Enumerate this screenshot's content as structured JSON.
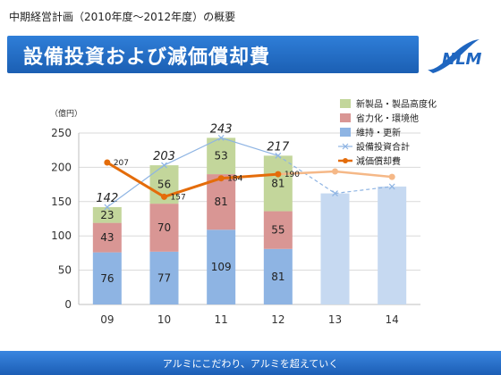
{
  "header": {
    "subtitle": "中期経営計画（2010年度～2012年度）の概要",
    "title": "設備投資および減価償却費",
    "logo_text": "NLM"
  },
  "footer": {
    "tagline": "アルミにこだわり、アルミを超えていく"
  },
  "colors": {
    "brand_blue": "#1f66c0",
    "maintenance": "#8eb4e3",
    "efficiency": "#d99694",
    "new_products": "#c3d69b",
    "capex_line": "#8eb4e3",
    "depreciation": "#e46c0a",
    "forecast_bar": "#c6d9f1",
    "forecast_line": "#f5b887"
  },
  "chart_data": {
    "type": "bar",
    "unit_label": "（億円）",
    "categories": [
      "09",
      "10",
      "11",
      "12",
      "13",
      "14"
    ],
    "ylim": [
      0,
      250
    ],
    "yticks": [
      0,
      50,
      100,
      150,
      200,
      250
    ],
    "grid": true,
    "legend_position": "top-right",
    "stacked_series": [
      {
        "name": "維持・更新",
        "values": [
          76,
          77,
          109,
          81,
          null,
          null
        ]
      },
      {
        "name": "省力化・環境他",
        "values": [
          43,
          70,
          81,
          55,
          null,
          null
        ]
      },
      {
        "name": "新製品・製品高度化",
        "values": [
          23,
          56,
          53,
          81,
          null,
          null
        ]
      }
    ],
    "totals": [
      142,
      203,
      243,
      217,
      null,
      null
    ],
    "forecast_bars": [
      null,
      null,
      null,
      null,
      162,
      172
    ],
    "capex_total_line": {
      "name": "設備投資合計",
      "values": [
        142,
        203,
        243,
        217,
        162,
        172
      ]
    },
    "depreciation_line": {
      "name": "減価償却費",
      "values": [
        207,
        157,
        184,
        190,
        194,
        186
      ],
      "labels": [
        "207",
        "157",
        "184",
        "190",
        "",
        ""
      ]
    }
  }
}
